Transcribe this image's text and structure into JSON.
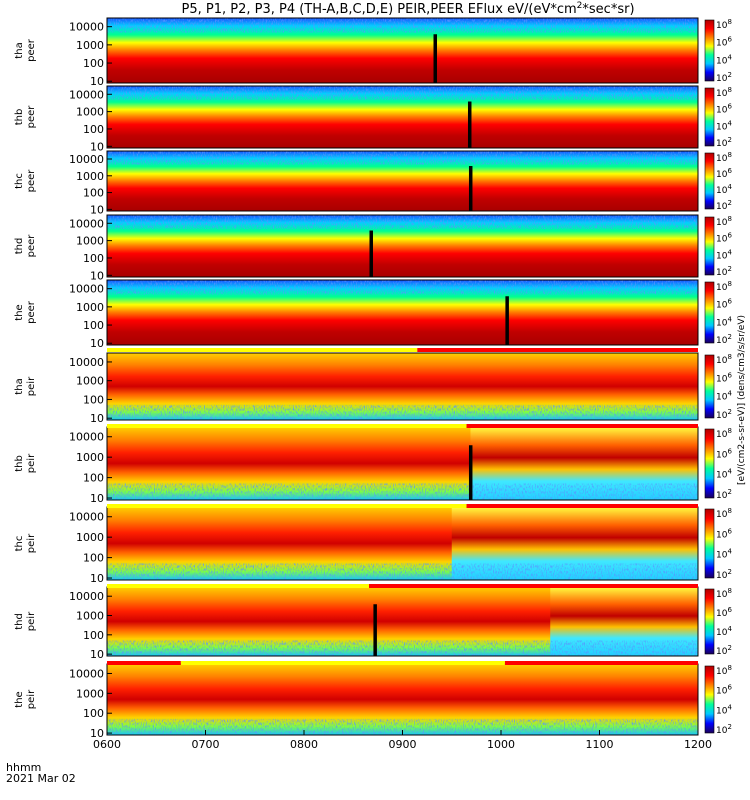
{
  "figure": {
    "title": "P5, P1, P2, P3, P4 (TH-A,B,C,D,E) PEIR,PEER EFlux eV/(eV*cm^2*sec*sr)",
    "title_main": "P5, P1, P2, P3, P4 (TH-A,B,C,D,E) PEIR,PEER EFlux eV/(eV*cm",
    "title_sup": "2",
    "title_end": "*sec*sr)",
    "time_label_row1": "hhmm",
    "time_label_row2": "2021 Mar 02",
    "colorbar_label": "[eV/(cm2-s-sr-eV)] (dens/cm3/s/sr/eV)"
  },
  "chart_data": {
    "type": "heatmap",
    "x_unit": "hhmm",
    "x_ticks": [
      "0600",
      "0700",
      "0800",
      "0900",
      "1000",
      "1100",
      "1200"
    ],
    "xlim": [
      "0600",
      "1200"
    ],
    "y_ticks": [
      "10",
      "100",
      "1000",
      "10000"
    ],
    "y_scale": "log",
    "ylim": [
      8,
      30000
    ],
    "colorbar": {
      "scale": "log",
      "tick_base": "10",
      "tick_exponents": [
        "2",
        "4",
        "6",
        "8"
      ],
      "colors": [
        "#1b0059",
        "#0000ff",
        "#00c8ff",
        "#00ff9a",
        "#ffff00",
        "#ff7f00",
        "#ff0000",
        "#b00000"
      ]
    },
    "panels": [
      {
        "probe": "tha",
        "species": "peer",
        "label_top": "tha",
        "label_bottom": "peer",
        "gap_hours": 9.33
      },
      {
        "probe": "thb",
        "species": "peer",
        "label_top": "thb",
        "label_bottom": "peer",
        "gap_hours": 9.68
      },
      {
        "probe": "thc",
        "species": "peer",
        "label_top": "thc",
        "label_bottom": "peer",
        "gap_hours": 9.69
      },
      {
        "probe": "thd",
        "species": "peer",
        "label_top": "thd",
        "label_bottom": "peer",
        "gap_hours": 8.68
      },
      {
        "probe": "the",
        "species": "peer",
        "label_top": "the",
        "label_bottom": "peer",
        "gap_hours": 10.06
      },
      {
        "probe": "tha",
        "species": "peir",
        "label_top": "tha",
        "label_bottom": "peir",
        "gap_hours": null
      },
      {
        "probe": "thb",
        "species": "peir",
        "label_top": "thb",
        "label_bottom": "peir",
        "gap_hours": 9.69
      },
      {
        "probe": "thc",
        "species": "peir",
        "label_top": "thc",
        "label_bottom": "peir",
        "gap_hours": null
      },
      {
        "probe": "thd",
        "species": "peir",
        "label_top": "thd",
        "label_bottom": "peir",
        "gap_hours": 8.72
      },
      {
        "probe": "the",
        "species": "peir",
        "label_top": "the",
        "label_bottom": "peir",
        "gap_hours": null
      }
    ],
    "mode_bars": {
      "colors": {
        "fast": "#ff0000",
        "slow": "#ffff00"
      },
      "segments": [
        [
          {
            "mode": "slow",
            "from": 6.0,
            "to": 9.15
          },
          {
            "mode": "fast",
            "from": 9.15,
            "to": 12.0
          }
        ],
        [
          {
            "mode": "slow",
            "from": 6.0,
            "to": 9.65
          },
          {
            "mode": "fast",
            "from": 9.65,
            "to": 12.0
          }
        ],
        [
          {
            "mode": "slow",
            "from": 6.0,
            "to": 9.65
          },
          {
            "mode": "fast",
            "from": 9.65,
            "to": 12.0
          }
        ],
        [
          {
            "mode": "slow",
            "from": 6.0,
            "to": 8.66
          },
          {
            "mode": "fast",
            "from": 8.66,
            "to": 12.0
          }
        ],
        [
          {
            "mode": "fast",
            "from": 6.0,
            "to": 6.75
          },
          {
            "mode": "slow",
            "from": 6.75,
            "to": 10.04
          },
          {
            "mode": "fast",
            "from": 10.04,
            "to": 12.0
          }
        ]
      ]
    }
  }
}
